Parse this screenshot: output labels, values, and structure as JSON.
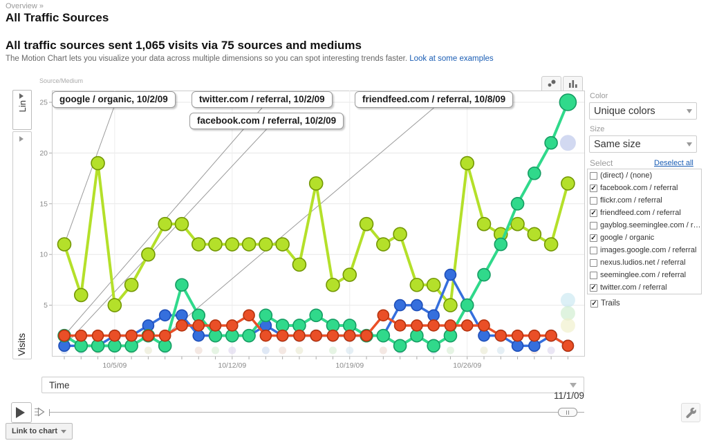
{
  "breadcrumb": "Overview »",
  "page_title": "All Traffic Sources",
  "headline": "All traffic sources sent 1,065 visits via 75 sources and mediums",
  "description": "The Motion Chart lets you visualize your data across multiple dimensions so you can spot interesting trends faster. ",
  "examples_link": "Look at some examples",
  "chart": {
    "dimension_label": "Source/Medium",
    "y_scale_button": "Lin",
    "y_axis_label": "Visits",
    "x_axis_dropdown": "Time"
  },
  "panel": {
    "color_label": "Color",
    "color_value": "Unique colors",
    "size_label": "Size",
    "size_value": "Same size",
    "select_label": "Select",
    "deselect_all": "Deselect all",
    "items": [
      {
        "label": "(direct) / (none)",
        "checked": false
      },
      {
        "label": "facebook.com / referral",
        "checked": true
      },
      {
        "label": "flickr.com / referral",
        "checked": false
      },
      {
        "label": "friendfeed.com / referral",
        "checked": true
      },
      {
        "label": "gayblog.seeminglee.com / refe...",
        "checked": false
      },
      {
        "label": "google / organic",
        "checked": true
      },
      {
        "label": "images.google.com / referral",
        "checked": false
      },
      {
        "label": "nexus.ludios.net / referral",
        "checked": false
      },
      {
        "label": "seeminglee.com / referral",
        "checked": false
      },
      {
        "label": "twitter.com / referral",
        "checked": true
      }
    ],
    "trails_label": "Trails",
    "trails_checked": true
  },
  "timeline": {
    "current_date": "11/1/09"
  },
  "footer": {
    "link_to_chart": "Link to chart"
  },
  "chart_data": {
    "type": "line",
    "title": "Motion Chart — Visits by Source/Medium over Time",
    "xlabel": "Time",
    "ylabel": "Visits",
    "ylim": [
      0,
      26
    ],
    "y_ticks": [
      5,
      10,
      15,
      20,
      25
    ],
    "x": [
      "10/2/09",
      "10/3/09",
      "10/4/09",
      "10/5/09",
      "10/6/09",
      "10/7/09",
      "10/8/09",
      "10/9/09",
      "10/10/09",
      "10/11/09",
      "10/12/09",
      "10/13/09",
      "10/14/09",
      "10/15/09",
      "10/16/09",
      "10/17/09",
      "10/18/09",
      "10/19/09",
      "10/20/09",
      "10/21/09",
      "10/22/09",
      "10/23/09",
      "10/24/09",
      "10/25/09",
      "10/26/09",
      "10/27/09",
      "10/28/09",
      "10/29/09",
      "10/30/09",
      "10/31/09",
      "11/1/09"
    ],
    "x_ticks": [
      {
        "label": "10/5/09",
        "day": 3
      },
      {
        "label": "10/12/09",
        "day": 10
      },
      {
        "label": "10/19/09",
        "day": 17
      },
      {
        "label": "10/26/09",
        "day": 24
      }
    ],
    "series": [
      {
        "name": "google / organic",
        "color": "#b4e02a",
        "stroke": "#739704",
        "line_w": 4,
        "point_r": 9.5,
        "values": [
          11,
          6,
          19,
          5,
          7,
          10,
          13,
          13,
          11,
          11,
          11,
          11,
          11,
          11,
          9,
          17,
          7,
          8,
          13,
          11,
          12,
          7,
          7,
          5,
          19,
          13,
          12,
          13,
          12,
          11,
          17
        ]
      },
      {
        "name": "facebook.com / referral",
        "color": "#356fdd",
        "stroke": "#1e4eb8",
        "line_w": 3.5,
        "point_r": 8,
        "values": [
          1,
          1,
          1,
          2,
          2,
          3,
          4,
          4,
          2,
          2,
          2,
          2,
          3,
          2,
          2,
          2,
          2,
          2,
          2,
          2,
          5,
          5,
          4,
          8,
          5,
          2,
          2,
          1,
          1,
          2,
          1
        ]
      },
      {
        "name": "twitter.com / referral",
        "color": "#30d98b",
        "stroke": "#159c63",
        "line_w": 4,
        "point_r": 9,
        "last_point_r": 12,
        "values": [
          2,
          1,
          1,
          1,
          1,
          2,
          1,
          7,
          4,
          2,
          2,
          2,
          4,
          3,
          3,
          4,
          3,
          3,
          2,
          2,
          1,
          2,
          1,
          2,
          5,
          8,
          11,
          15,
          18,
          21,
          25
        ]
      },
      {
        "name": "friendfeed.com / referral",
        "color": "#ea4f27",
        "stroke": "#b5330e",
        "line_w": 3.5,
        "point_r": 8,
        "values": [
          2,
          2,
          2,
          2,
          2,
          2,
          2,
          3,
          3,
          3,
          3,
          4,
          2,
          2,
          2,
          2,
          2,
          2,
          2,
          4,
          3,
          3,
          3,
          3,
          3,
          3,
          2,
          2,
          2,
          2,
          1
        ]
      }
    ],
    "pinned_labels": [
      {
        "label": "google / organic, 10/2/09",
        "series": 0,
        "day": 0
      },
      {
        "label": "twitter.com / referral, 10/2/09",
        "series": 2,
        "day": 0
      },
      {
        "label": "friendfeed.com / referral, 10/8/09",
        "series": 3,
        "day": 6
      },
      {
        "label": "facebook.com / referral, 10/2/09",
        "series": 1,
        "day": 0
      }
    ],
    "faded_points": [
      {
        "day": 30,
        "value": 21,
        "color": "#b7c2ea",
        "r": 11
      },
      {
        "day": 30,
        "value": 5.5,
        "color": "#c8e7f2",
        "r": 10
      },
      {
        "day": 30,
        "value": 4.2,
        "color": "#cdeccc",
        "r": 10
      },
      {
        "day": 30,
        "value": 3,
        "color": "#f0efc8",
        "r": 10
      }
    ],
    "baseline_trail": [
      {
        "day": 0,
        "color": "#c9d9ee"
      },
      {
        "day": 1,
        "color": "#c9d9ee"
      },
      {
        "day": 2,
        "color": "#ecd8d0"
      },
      {
        "day": 4,
        "color": "#d6ecd2"
      },
      {
        "day": 5,
        "color": "#e7e7ce"
      },
      {
        "day": 6,
        "color": "#d3e4ee"
      },
      {
        "day": 8,
        "color": "#ecd8d0"
      },
      {
        "day": 9,
        "color": "#d6ecd2"
      },
      {
        "day": 10,
        "color": "#dcd6ec"
      },
      {
        "day": 12,
        "color": "#c9d9ee"
      },
      {
        "day": 13,
        "color": "#ecd8d0"
      },
      {
        "day": 14,
        "color": "#e7e7ce"
      },
      {
        "day": 16,
        "color": "#d6ecd2"
      },
      {
        "day": 17,
        "color": "#d3e4ee"
      },
      {
        "day": 19,
        "color": "#ecd8d0"
      },
      {
        "day": 20,
        "color": "#dcd6ec"
      },
      {
        "day": 22,
        "color": "#c9d9ee"
      },
      {
        "day": 23,
        "color": "#d6ecd2"
      },
      {
        "day": 25,
        "color": "#e7e7ce"
      },
      {
        "day": 26,
        "color": "#d3e4ee"
      },
      {
        "day": 28,
        "color": "#ecd8d0"
      },
      {
        "day": 29,
        "color": "#dcd6ec"
      }
    ],
    "grid": true,
    "legend_position": "none"
  }
}
